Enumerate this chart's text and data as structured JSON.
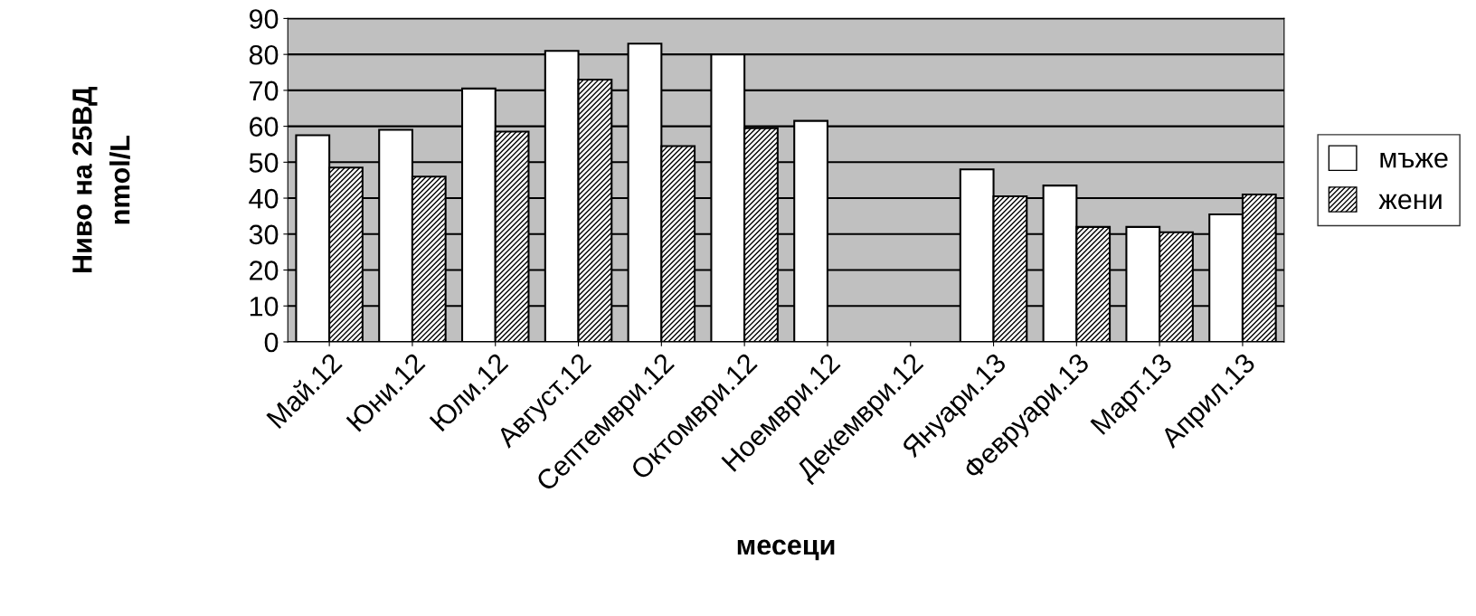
{
  "chart_data": {
    "type": "bar",
    "xlabel": "месеци",
    "ylabel": "Ниво на 25ВД\nnmol/L",
    "categories": [
      "Май.12",
      "Юни.12",
      "Юли.12",
      "Август.12",
      "Септември.12",
      "Октомври.12",
      "Ноември.12",
      "Декември.12",
      "Януари.13",
      "Февруари.13",
      "Март.13",
      "Април.13"
    ],
    "series": [
      {
        "name": "мъже",
        "color": "#ffffff",
        "values": [
          57.5,
          59,
          70.5,
          81,
          83,
          80,
          61.5,
          null,
          48,
          43.5,
          32,
          35.5
        ]
      },
      {
        "name": "жени",
        "color": "#000000",
        "values": [
          48.5,
          46,
          58.5,
          73,
          54.5,
          59.5,
          null,
          null,
          40.5,
          32,
          30.5,
          41
        ]
      }
    ],
    "ylim": [
      0,
      90
    ],
    "yticks": [
      0,
      10,
      20,
      30,
      40,
      50,
      60,
      70,
      80,
      90
    ],
    "grid": "y",
    "legend": "right"
  }
}
